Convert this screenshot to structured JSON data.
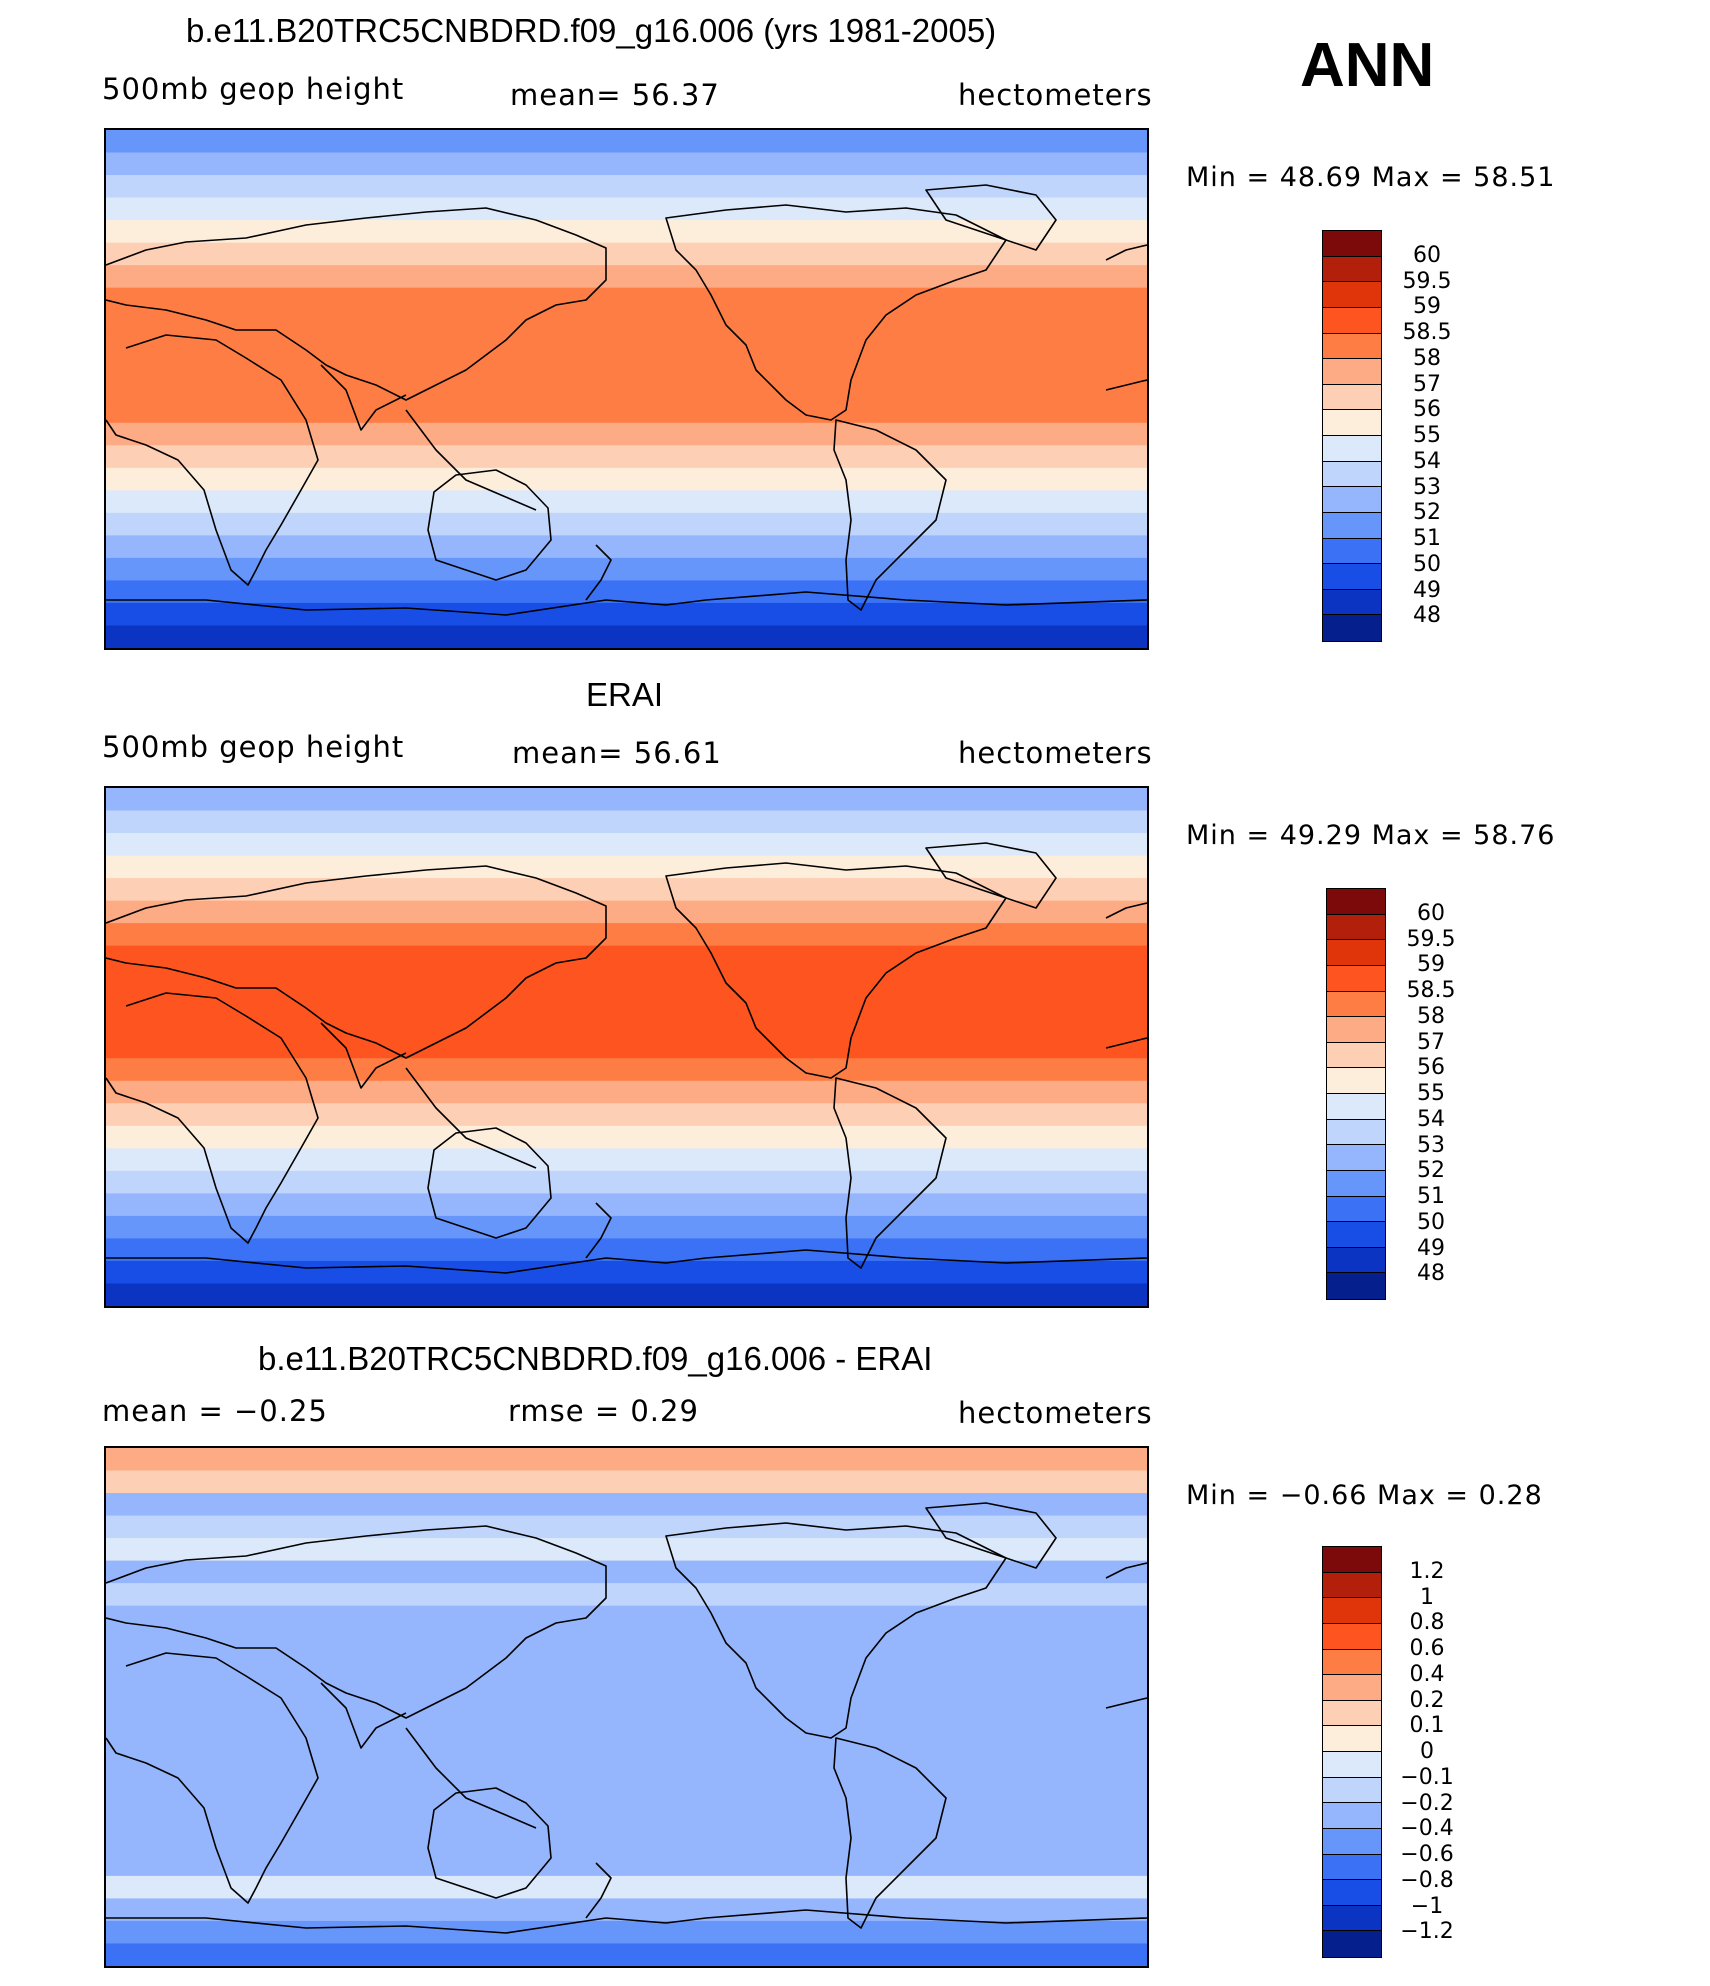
{
  "header": {
    "season": "ANN"
  },
  "panels": [
    {
      "title": "b.e11.B20TRC5CNBDRD.f09_g16.006 (yrs 1981-2005)",
      "left": "500mb geop height",
      "center": "mean=   56.37",
      "right": "hectometers",
      "minmax": "Min =   48.69  Max =   58.51",
      "colorbar": {
        "labels": [
          "60",
          "59.5",
          "59",
          "58.5",
          "58",
          "57",
          "56",
          "55",
          "54",
          "53",
          "52",
          "51",
          "50",
          "49",
          "48"
        ],
        "colors": [
          "#7d0a0a",
          "#b21f0a",
          "#e0350a",
          "#fd5420",
          "#fe7d45",
          "#fdab84",
          "#fdd0b5",
          "#fdeedc",
          "#dce9fa",
          "#bfd5fb",
          "#95b6fc",
          "#6796fb",
          "#3a71f5",
          "#184ee6",
          "#0b34c2",
          "#05208c"
        ]
      },
      "bands": [
        "#0b34c2",
        "#184ee6",
        "#3a71f5",
        "#6796fb",
        "#95b6fc",
        "#bfd5fb",
        "#dce9fa",
        "#fdeedc",
        "#fdd0b5",
        "#fdab84",
        "#fe7d45",
        "#fe7d45",
        "#fe7d45",
        "#fe7d45",
        "#fe7d45",
        "#fe7d45",
        "#fdab84",
        "#fdd0b5",
        "#fdeedc",
        "#dce9fa",
        "#bfd5fb",
        "#95b6fc",
        "#6796fb"
      ]
    },
    {
      "title": "ERAI",
      "left": "500mb geop height",
      "center": "mean=   56.61",
      "right": "hectometers",
      "minmax": "Min =   49.29  Max =   58.76",
      "colorbar": {
        "labels": [
          "60",
          "59.5",
          "59",
          "58.5",
          "58",
          "57",
          "56",
          "55",
          "54",
          "53",
          "52",
          "51",
          "50",
          "49",
          "48"
        ],
        "colors": [
          "#7d0a0a",
          "#b21f0a",
          "#e0350a",
          "#fd5420",
          "#fe7d45",
          "#fdab84",
          "#fdd0b5",
          "#fdeedc",
          "#dce9fa",
          "#bfd5fb",
          "#95b6fc",
          "#6796fb",
          "#3a71f5",
          "#184ee6",
          "#0b34c2",
          "#05208c"
        ]
      },
      "bands": [
        "#0b34c2",
        "#184ee6",
        "#3a71f5",
        "#6796fb",
        "#95b6fc",
        "#bfd5fb",
        "#dce9fa",
        "#fdeedc",
        "#fdd0b5",
        "#fdab84",
        "#fe7d45",
        "#fd5420",
        "#fd5420",
        "#fd5420",
        "#fd5420",
        "#fd5420",
        "#fe7d45",
        "#fdab84",
        "#fdd0b5",
        "#fdeedc",
        "#dce9fa",
        "#bfd5fb",
        "#95b6fc"
      ]
    },
    {
      "title": "b.e11.B20TRC5CNBDRD.f09_g16.006 - ERAI",
      "left": "mean =   −0.25",
      "center": "rmse =    0.29",
      "right": "hectometers",
      "minmax": "Min =   −0.66  Max =    0.28",
      "colorbar": {
        "labels": [
          "1.2",
          "1",
          "0.8",
          "0.6",
          "0.4",
          "0.2",
          "0.1",
          "0",
          "−0.1",
          "−0.2",
          "−0.4",
          "−0.6",
          "−0.8",
          "−1",
          "−1.2"
        ],
        "colors": [
          "#7d0a0a",
          "#b21f0a",
          "#e0350a",
          "#fd5420",
          "#fe7d45",
          "#fdab84",
          "#fdd0b5",
          "#fdeedc",
          "#dce9fa",
          "#bfd5fb",
          "#95b6fc",
          "#6796fb",
          "#3a71f5",
          "#184ee6",
          "#0b34c2",
          "#05208c"
        ]
      },
      "bands": [
        "#3a71f5",
        "#6796fb",
        "#95b6fc",
        "#dce9fa",
        "#95b6fc",
        "#95b6fc",
        "#95b6fc",
        "#95b6fc",
        "#95b6fc",
        "#95b6fc",
        "#95b6fc",
        "#95b6fc",
        "#95b6fc",
        "#95b6fc",
        "#95b6fc",
        "#95b6fc",
        "#bfd5fb",
        "#95b6fc",
        "#dce9fa",
        "#bfd5fb",
        "#95b6fc",
        "#fdd0b5",
        "#fdab84"
      ]
    }
  ]
}
